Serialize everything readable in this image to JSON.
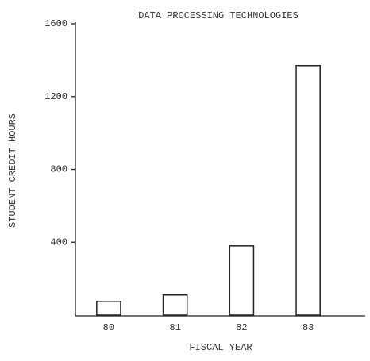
{
  "chart_data": {
    "type": "bar",
    "title": "DATA PROCESSING TECHNOLOGIES",
    "x_label": "FISCAL YEAR",
    "y_label": "STUDENT CREDIT HOURS",
    "categories": [
      "80",
      "81",
      "82",
      "83"
    ],
    "values": [
      75,
      110,
      380,
      1370
    ],
    "color": "#ffffff",
    "ylim": [
      0,
      1600
    ],
    "yticks": [
      400,
      800,
      1200,
      1600
    ],
    "grid": false
  }
}
